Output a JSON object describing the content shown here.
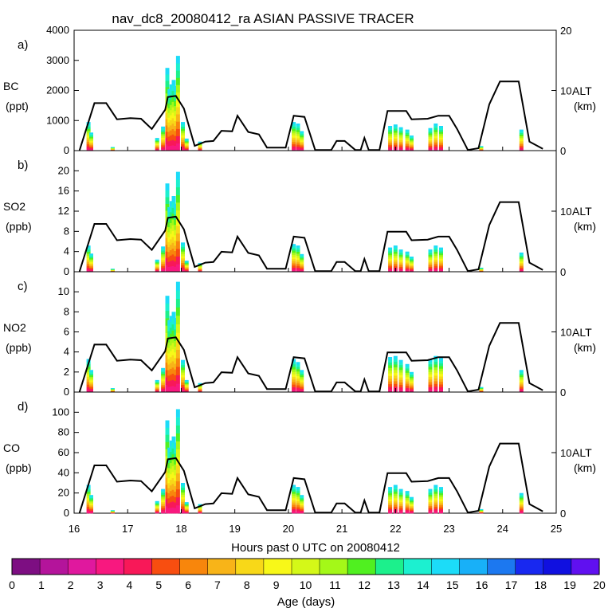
{
  "chart_data": {
    "title": "nav_dc8_20080412_ra ASIAN PASSIVE TRACER",
    "xlabel": "Hours past 0 UTC on 20080412",
    "x_ticks": [
      "16",
      "17",
      "18",
      "19",
      "20",
      "21",
      "22",
      "23",
      "24",
      "25"
    ],
    "xlim": [
      16,
      25
    ],
    "type": "bar",
    "panels": [
      {
        "label": "a)",
        "species": "BC",
        "units": "(ppt)",
        "ylim": [
          0,
          4000
        ],
        "y_ticks": [
          "0",
          "1000",
          "2000",
          "3000",
          "4000"
        ],
        "alt_label": "ALT",
        "alt_units": "(km)",
        "alt_ylim": [
          0,
          20
        ],
        "alt_ticks": [
          "0",
          "10",
          "20"
        ],
        "bars": [
          {
            "x": 16.27,
            "v": 950
          },
          {
            "x": 16.32,
            "v": 600
          },
          {
            "x": 16.72,
            "v": 120
          },
          {
            "x": 17.55,
            "v": 420
          },
          {
            "x": 17.66,
            "v": 800
          },
          {
            "x": 17.74,
            "v": 2750
          },
          {
            "x": 17.78,
            "v": 2050
          },
          {
            "x": 17.82,
            "v": 2200
          },
          {
            "x": 17.86,
            "v": 2350
          },
          {
            "x": 17.9,
            "v": 2150
          },
          {
            "x": 17.94,
            "v": 3150
          },
          {
            "x": 18.03,
            "v": 950
          },
          {
            "x": 18.1,
            "v": 400
          },
          {
            "x": 18.35,
            "v": 300
          },
          {
            "x": 20.1,
            "v": 950
          },
          {
            "x": 20.18,
            "v": 900
          },
          {
            "x": 20.25,
            "v": 650
          },
          {
            "x": 21.9,
            "v": 820
          },
          {
            "x": 22.0,
            "v": 870
          },
          {
            "x": 22.1,
            "v": 780
          },
          {
            "x": 22.22,
            "v": 700
          },
          {
            "x": 22.3,
            "v": 500
          },
          {
            "x": 22.65,
            "v": 750
          },
          {
            "x": 22.75,
            "v": 900
          },
          {
            "x": 22.85,
            "v": 820
          },
          {
            "x": 23.6,
            "v": 150
          },
          {
            "x": 24.35,
            "v": 700
          }
        ],
        "altitude": {
          "x": [
            16.1,
            16.38,
            16.6,
            16.8,
            17.05,
            17.25,
            17.45,
            17.7,
            17.75,
            17.9,
            18.05,
            18.25,
            18.45,
            18.6,
            18.75,
            18.95,
            19.05,
            19.25,
            19.45,
            19.6,
            19.95,
            20.1,
            20.3,
            20.5,
            20.8,
            20.9,
            21.05,
            21.25,
            21.35,
            21.42,
            21.5,
            21.7,
            21.85,
            22.2,
            22.3,
            22.6,
            22.8,
            23.0,
            23.15,
            23.35,
            23.55,
            23.75,
            23.95,
            24.3,
            24.5,
            24.75
          ],
          "km": [
            0,
            7.9,
            7.9,
            5.2,
            5.4,
            5.3,
            3.6,
            6.8,
            8.9,
            9.1,
            7.0,
            0.8,
            1.5,
            1.6,
            3.3,
            3.2,
            5.8,
            3.1,
            2.7,
            0.5,
            0.5,
            5.8,
            5.6,
            0.1,
            0.1,
            1.6,
            1.6,
            0.1,
            0.1,
            2.1,
            0.1,
            0.1,
            6.6,
            6.6,
            5.2,
            5.3,
            5.8,
            5.8,
            3.6,
            0.1,
            0.4,
            7.7,
            11.5,
            11.5,
            1.5,
            0.3
          ]
        }
      },
      {
        "label": "b)",
        "species": "SO2",
        "units": "(ppb)",
        "ylim": [
          0,
          24
        ],
        "y_ticks": [
          "0",
          "4",
          "8",
          "12",
          "16",
          "20"
        ],
        "alt_label": "ALT",
        "alt_units": "(km)",
        "alt_ylim": [
          0,
          20
        ],
        "alt_ticks": [
          "0",
          "10"
        ],
        "bars": [
          {
            "x": 16.27,
            "v": 5.2
          },
          {
            "x": 16.32,
            "v": 3.6
          },
          {
            "x": 16.72,
            "v": 0.6
          },
          {
            "x": 17.55,
            "v": 2.4
          },
          {
            "x": 17.66,
            "v": 5.0
          },
          {
            "x": 17.74,
            "v": 17.5
          },
          {
            "x": 17.78,
            "v": 12.8
          },
          {
            "x": 17.82,
            "v": 14.0
          },
          {
            "x": 17.86,
            "v": 15.0
          },
          {
            "x": 17.9,
            "v": 13.5
          },
          {
            "x": 17.94,
            "v": 19.8
          },
          {
            "x": 18.03,
            "v": 5.8
          },
          {
            "x": 18.1,
            "v": 2.2
          },
          {
            "x": 18.35,
            "v": 1.7
          },
          {
            "x": 20.1,
            "v": 5.5
          },
          {
            "x": 20.18,
            "v": 5.2
          },
          {
            "x": 20.25,
            "v": 3.5
          },
          {
            "x": 21.9,
            "v": 4.8
          },
          {
            "x": 22.0,
            "v": 5.2
          },
          {
            "x": 22.1,
            "v": 4.4
          },
          {
            "x": 22.22,
            "v": 4.0
          },
          {
            "x": 22.3,
            "v": 3.0
          },
          {
            "x": 22.65,
            "v": 4.4
          },
          {
            "x": 22.75,
            "v": 5.2
          },
          {
            "x": 22.85,
            "v": 4.8
          },
          {
            "x": 23.6,
            "v": 0.8
          },
          {
            "x": 24.35,
            "v": 3.8
          }
        ]
      },
      {
        "label": "c)",
        "species": "NO2",
        "units": "(ppb)",
        "ylim": [
          0,
          12
        ],
        "y_ticks": [
          "0",
          "2",
          "4",
          "6",
          "8",
          "10"
        ],
        "alt_label": "ALT",
        "alt_units": "(km)",
        "alt_ylim": [
          0,
          20
        ],
        "alt_ticks": [
          "0",
          "10"
        ],
        "bars": [
          {
            "x": 16.27,
            "v": 3.3
          },
          {
            "x": 16.32,
            "v": 2.2
          },
          {
            "x": 16.72,
            "v": 0.4
          },
          {
            "x": 17.55,
            "v": 1.2
          },
          {
            "x": 17.66,
            "v": 2.4
          },
          {
            "x": 17.74,
            "v": 9.6
          },
          {
            "x": 17.78,
            "v": 7.2
          },
          {
            "x": 17.82,
            "v": 7.6
          },
          {
            "x": 17.86,
            "v": 8.0
          },
          {
            "x": 17.9,
            "v": 7.4
          },
          {
            "x": 17.94,
            "v": 11.0
          },
          {
            "x": 18.03,
            "v": 3.2
          },
          {
            "x": 18.1,
            "v": 1.2
          },
          {
            "x": 18.35,
            "v": 0.9
          },
          {
            "x": 20.1,
            "v": 3.3
          },
          {
            "x": 20.18,
            "v": 3.0
          },
          {
            "x": 20.25,
            "v": 2.2
          },
          {
            "x": 21.9,
            "v": 3.5
          },
          {
            "x": 22.0,
            "v": 3.6
          },
          {
            "x": 22.1,
            "v": 3.2
          },
          {
            "x": 22.22,
            "v": 2.8
          },
          {
            "x": 22.3,
            "v": 2.0
          },
          {
            "x": 22.65,
            "v": 3.3
          },
          {
            "x": 22.75,
            "v": 3.6
          },
          {
            "x": 22.85,
            "v": 3.4
          },
          {
            "x": 23.6,
            "v": 0.5
          },
          {
            "x": 24.35,
            "v": 2.2
          }
        ]
      },
      {
        "label": "d)",
        "species": "CO",
        "units": "(ppb)",
        "ylim": [
          0,
          120
        ],
        "y_ticks": [
          "0",
          "20",
          "40",
          "60",
          "80",
          "100"
        ],
        "alt_label": "ALT",
        "alt_units": "(km)",
        "alt_ylim": [
          0,
          20
        ],
        "alt_ticks": [
          "0",
          "10"
        ],
        "bars": [
          {
            "x": 16.27,
            "v": 28
          },
          {
            "x": 16.32,
            "v": 18
          },
          {
            "x": 16.72,
            "v": 3
          },
          {
            "x": 17.55,
            "v": 12
          },
          {
            "x": 17.66,
            "v": 24
          },
          {
            "x": 17.74,
            "v": 92
          },
          {
            "x": 17.78,
            "v": 65
          },
          {
            "x": 17.82,
            "v": 72
          },
          {
            "x": 17.86,
            "v": 76
          },
          {
            "x": 17.9,
            "v": 70
          },
          {
            "x": 17.94,
            "v": 103
          },
          {
            "x": 18.03,
            "v": 30
          },
          {
            "x": 18.1,
            "v": 11
          },
          {
            "x": 18.35,
            "v": 9
          },
          {
            "x": 20.1,
            "v": 28
          },
          {
            "x": 20.18,
            "v": 26
          },
          {
            "x": 20.25,
            "v": 18
          },
          {
            "x": 21.9,
            "v": 26
          },
          {
            "x": 22.0,
            "v": 28
          },
          {
            "x": 22.1,
            "v": 24
          },
          {
            "x": 22.22,
            "v": 22
          },
          {
            "x": 22.3,
            "v": 16
          },
          {
            "x": 22.65,
            "v": 24
          },
          {
            "x": 22.75,
            "v": 28
          },
          {
            "x": 22.85,
            "v": 26
          },
          {
            "x": 23.6,
            "v": 4
          },
          {
            "x": 24.35,
            "v": 20
          }
        ]
      }
    ],
    "colorbar": {
      "label": "Age (days)",
      "ticks": [
        "0",
        "1",
        "2",
        "3",
        "4",
        "5",
        "6",
        "7",
        "8",
        "9",
        "10",
        "11",
        "12",
        "13",
        "14",
        "15",
        "16",
        "17",
        "18",
        "19",
        "20"
      ],
      "colors": [
        "#7d0e82",
        "#b4149b",
        "#e0189e",
        "#f8187f",
        "#f81858",
        "#f84e10",
        "#f8860c",
        "#f8b418",
        "#f8d818",
        "#f8f818",
        "#d4f818",
        "#a4f818",
        "#50f020",
        "#1cf08c",
        "#1cf0d0",
        "#1cdcf8",
        "#18b0f8",
        "#1c78f0",
        "#1828f0",
        "#1010e0",
        "#6010f0"
      ]
    }
  }
}
